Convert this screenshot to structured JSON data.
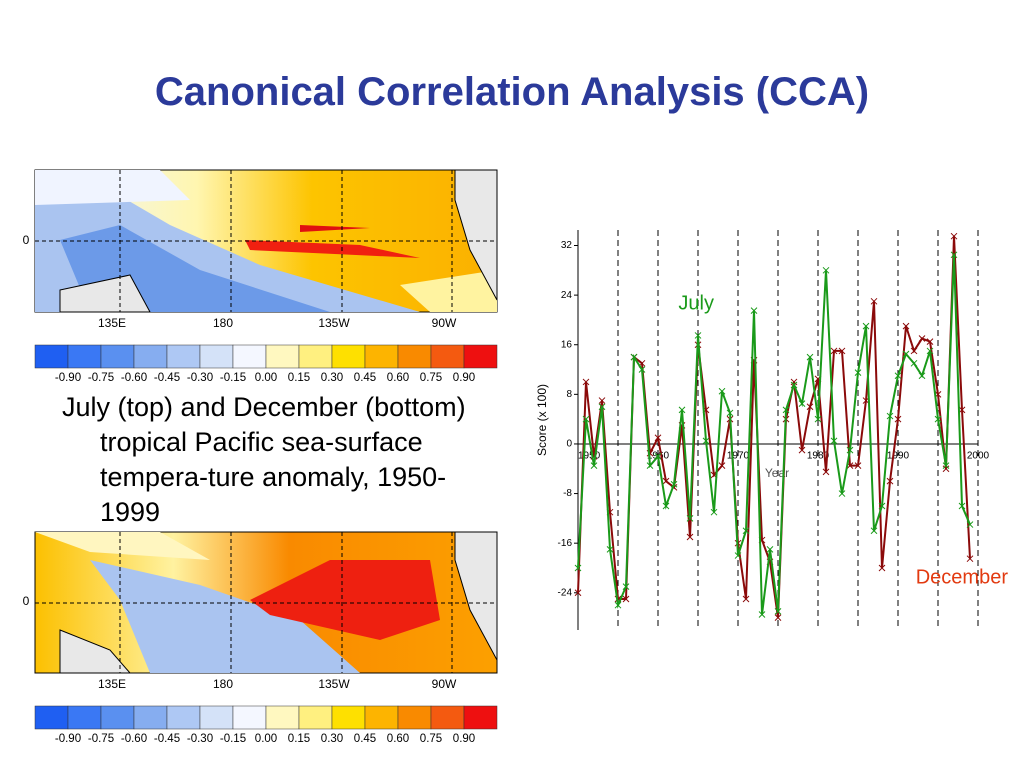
{
  "title": "Canonical Correlation Analysis (CCA)",
  "caption": "July (top) and December (bottom) tropical Pacific sea-surface tempera-ture anomaly, 1950-1999",
  "maps": [
    {
      "lon_labels": [
        "135E",
        "180",
        "135W",
        "90W"
      ],
      "lat_label": "0",
      "colorbar_labels": [
        "-0.90",
        "-0.75",
        "-0.60",
        "-0.45",
        "-0.30",
        "-0.15",
        "0.00",
        "0.15",
        "0.30",
        "0.45",
        "0.60",
        "0.75",
        "0.90"
      ]
    },
    {
      "lon_labels": [
        "135E",
        "180",
        "135W",
        "90W"
      ],
      "lat_label": "0",
      "colorbar_labels": [
        "-0.90",
        "-0.75",
        "-0.60",
        "-0.45",
        "-0.30",
        "-0.15",
        "0.00",
        "0.15",
        "0.30",
        "0.45",
        "0.60",
        "0.75",
        "0.90"
      ]
    }
  ],
  "colorbar_colors": [
    "#1f5ff2",
    "#3a78f4",
    "#5a90f0",
    "#86adf0",
    "#aec8f4",
    "#d4e2f8",
    "#f4f7ff",
    "#fff8c0",
    "#fff080",
    "#fee000",
    "#fdb400",
    "#f98a00",
    "#f45a10",
    "#ee1010"
  ],
  "chart_data": {
    "type": "line",
    "x_label": "Year",
    "y_label": "Score (x 100)",
    "xlim": [
      1950,
      2000
    ],
    "ylim": [
      -30,
      34.5
    ],
    "xticks": [
      1950,
      1960,
      1970,
      1980,
      1990,
      2000
    ],
    "yticks": [
      32,
      24,
      16,
      8,
      0,
      -8,
      -16,
      -24
    ],
    "grid": "x",
    "x": [
      1950,
      1951,
      1952,
      1953,
      1954,
      1955,
      1956,
      1957,
      1958,
      1959,
      1960,
      1961,
      1962,
      1963,
      1964,
      1965,
      1966,
      1967,
      1968,
      1969,
      1970,
      1971,
      1972,
      1973,
      1974,
      1975,
      1976,
      1977,
      1978,
      1979,
      1980,
      1981,
      1982,
      1983,
      1984,
      1985,
      1986,
      1987,
      1988,
      1989,
      1990,
      1991,
      1992,
      1993,
      1994,
      1995,
      1996,
      1997,
      1998,
      1999
    ],
    "series": [
      {
        "name": "December",
        "color": "#8b0a0a",
        "label_color": "#e23a10",
        "values": [
          -24,
          10,
          -2,
          7,
          -11,
          -25,
          -25,
          14,
          13,
          -1.5,
          1,
          -6,
          -7,
          3,
          -15,
          16,
          5.5,
          -5,
          -3.5,
          4,
          -16,
          -25,
          13.5,
          -15.5,
          -19,
          -28,
          4,
          10,
          -1,
          6,
          10.5,
          -4.5,
          15,
          15,
          -3.5,
          -3.5,
          7,
          23,
          -20,
          -6,
          4,
          19,
          15,
          17,
          16.5,
          8,
          -4,
          33.5,
          5.5,
          -18.5
        ]
      },
      {
        "name": "July",
        "color": "#1a9a1a",
        "label_color": "#1a9a1a",
        "values": [
          -20,
          4,
          -3.5,
          6,
          -17,
          -26,
          -23,
          14,
          12,
          -3.5,
          -2,
          -10,
          -6.5,
          5.5,
          -12,
          17.5,
          0.5,
          -11,
          8.5,
          5,
          -18,
          -14,
          21.5,
          -27.5,
          -17,
          -27,
          5.5,
          9.5,
          6.5,
          14,
          4,
          28,
          0.5,
          -8,
          -1,
          11.5,
          19,
          -14,
          -10,
          4.5,
          11,
          14.5,
          13,
          11,
          15,
          4,
          -3.5,
          30.5,
          -10,
          -13
        ]
      }
    ]
  }
}
